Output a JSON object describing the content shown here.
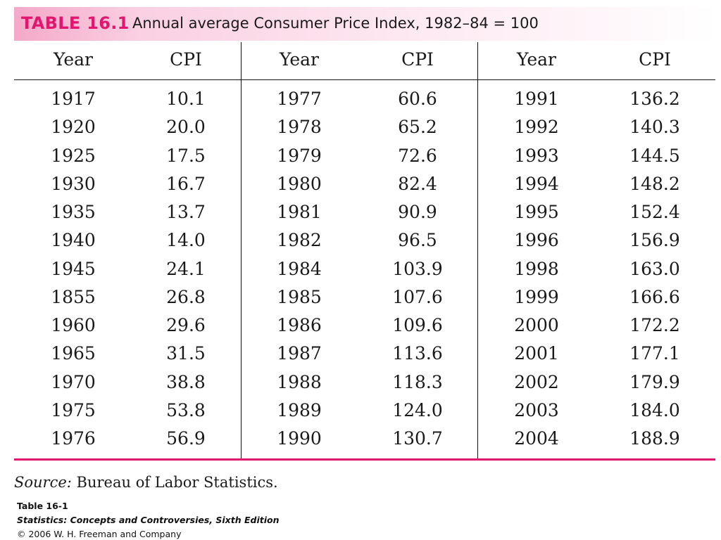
{
  "table": {
    "number": "TABLE 16.1",
    "caption": "Annual average Consumer Price Index, 1982–84 = 100",
    "headers": [
      "Year",
      "CPI",
      "Year",
      "CPI",
      "Year",
      "CPI"
    ],
    "rows": [
      [
        "1917",
        "10.1",
        "1977",
        "60.6",
        "1991",
        "136.2"
      ],
      [
        "1920",
        "20.0",
        "1978",
        "65.2",
        "1992",
        "140.3"
      ],
      [
        "1925",
        "17.5",
        "1979",
        "72.6",
        "1993",
        "144.5"
      ],
      [
        "1930",
        "16.7",
        "1980",
        "82.4",
        "1994",
        "148.2"
      ],
      [
        "1935",
        "13.7",
        "1981",
        "90.9",
        "1995",
        "152.4"
      ],
      [
        "1940",
        "14.0",
        "1982",
        "96.5",
        "1996",
        "156.9"
      ],
      [
        "1945",
        "24.1",
        "1984",
        "103.9",
        "1998",
        "163.0"
      ],
      [
        "1855",
        "26.8",
        "1985",
        "107.6",
        "1999",
        "166.6"
      ],
      [
        "1960",
        "29.6",
        "1986",
        "109.6",
        "2000",
        "172.2"
      ],
      [
        "1965",
        "31.5",
        "1987",
        "113.6",
        "2001",
        "177.1"
      ],
      [
        "1970",
        "38.8",
        "1988",
        "118.3",
        "2002",
        "179.9"
      ],
      [
        "1975",
        "53.8",
        "1989",
        "124.0",
        "2003",
        "184.0"
      ],
      [
        "1976",
        "56.9",
        "1990",
        "130.7",
        "2004",
        "188.9"
      ]
    ],
    "source_label": "Source:",
    "source_text": "Bureau of Labor Statistics."
  },
  "footer": {
    "line1": "Table 16-1",
    "line2": "Statistics: Concepts and Controversies, Sixth Edition",
    "line3": "© 2006 W. H. Freeman and Company"
  },
  "colors": {
    "accent": "#e3166f",
    "title_band": "#fad0e2"
  }
}
